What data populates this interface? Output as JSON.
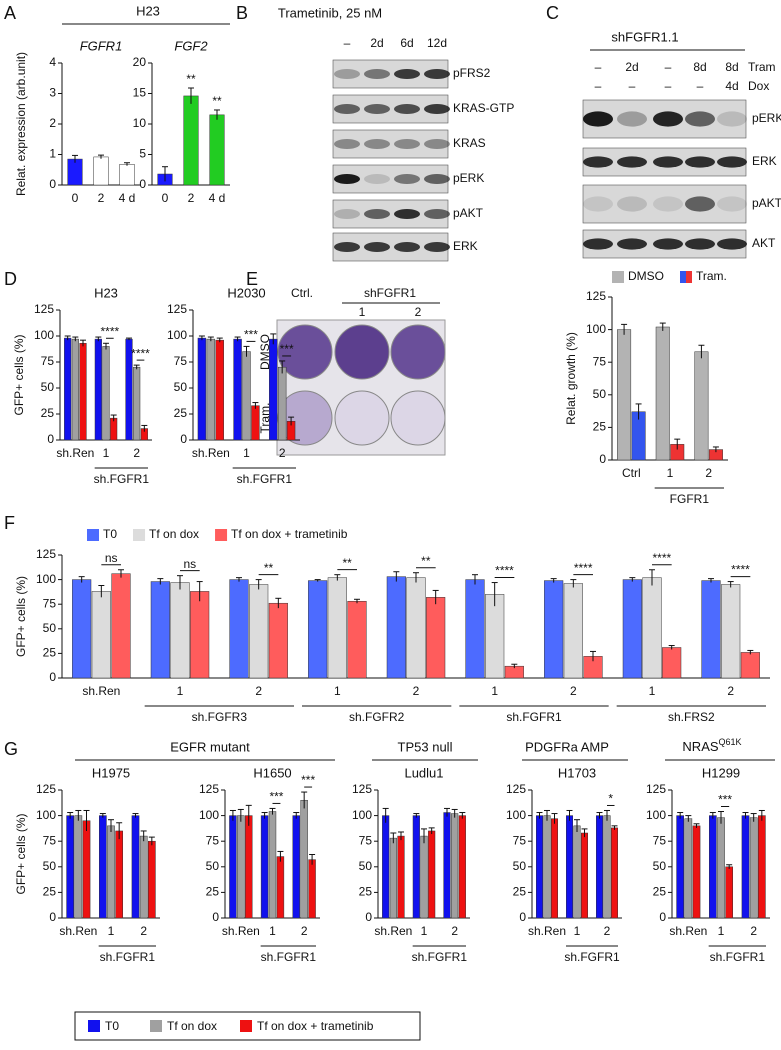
{
  "panel_labels": [
    "A",
    "B",
    "C",
    "D",
    "E",
    "F",
    "G"
  ],
  "panel_a": {
    "cell_line": "H23"
  },
  "blot_b": {
    "title": "Trametinib, 25 nM",
    "lanes": [
      "–",
      "2d",
      "6d",
      "12d"
    ],
    "rows": [
      "pFRS2",
      "KRAS-GTP",
      "KRAS",
      "pERK",
      "pAKT",
      "ERK"
    ]
  },
  "blot_c": {
    "title": "shFGFR1.1",
    "conditions": [
      {
        "name": "Tram",
        "lanes": [
          "–",
          "2d",
          "–",
          "8d",
          "8d"
        ]
      },
      {
        "name": "Dox",
        "lanes": [
          "–",
          "–",
          "–",
          "–",
          "4d"
        ]
      }
    ],
    "rows": [
      "pERK",
      "ERK",
      "pAKT",
      "AKT"
    ]
  },
  "plates_e": {
    "columns": [
      "Ctrl.",
      "1",
      "2"
    ],
    "column_group": "shFGFR1",
    "rows": [
      "DMSO",
      "Tram."
    ]
  },
  "headers_g": [
    {
      "text": "EGFR mutant"
    },
    {
      "text": "TP53 null"
    },
    {
      "text": "PDGFRa AMP"
    },
    {
      "text": "NRAS",
      "superscript": "Q61K"
    }
  ],
  "legend_g": [
    {
      "name": "T0",
      "color": "#1111ee"
    },
    {
      "name": "Tf on dox",
      "color": "#a0a0a0"
    },
    {
      "name": "Tf on dox + trametinib",
      "color": "#ee1111"
    }
  ],
  "chart_data": [
    {
      "type": "bar",
      "title": "FGFR1",
      "ylabel": "Relat. expression (arb.unit)",
      "categories": [
        "0",
        "2",
        "4 d"
      ],
      "values": [
        0.85,
        0.92,
        0.68
      ],
      "errors": [
        0.12,
        0.06,
        0.05
      ],
      "colors": [
        "#1a1aff",
        "#ffffff",
        "#ffffff"
      ],
      "ylim": [
        0,
        4
      ],
      "yticks": [
        0,
        1,
        2,
        3,
        4
      ]
    },
    {
      "type": "bar",
      "title": "FGF2",
      "categories": [
        "0",
        "2",
        "4 d"
      ],
      "values": [
        1.8,
        14.6,
        11.5
      ],
      "errors": [
        1.2,
        1.3,
        0.8
      ],
      "colors": [
        "#1a1aff",
        "#22cc22",
        "#22cc22"
      ],
      "significance": [
        null,
        "**",
        "**"
      ],
      "ylim": [
        0,
        20
      ],
      "yticks": [
        0,
        5,
        10,
        15,
        20
      ]
    },
    {
      "type": "bar",
      "title": "H23",
      "ylabel": "GFP+ cells (%)",
      "categories": [
        "sh.Ren",
        "1",
        "2"
      ],
      "category_groups": [
        null,
        "sh.FGFR1",
        "sh.FGFR1"
      ],
      "series": [
        {
          "color": "#1111ee",
          "values": [
            98,
            97,
            97
          ],
          "errors": [
            2,
            2,
            1
          ]
        },
        {
          "color": "#a0a0a0",
          "values": [
            97,
            90,
            70
          ],
          "errors": [
            2,
            3,
            2
          ]
        },
        {
          "color": "#ee1111",
          "values": [
            93,
            21,
            11
          ],
          "errors": [
            3,
            3,
            3
          ]
        }
      ],
      "significance": [
        null,
        "****",
        "****"
      ],
      "ylim": [
        0,
        125
      ],
      "yticks": [
        0,
        25,
        50,
        75,
        100,
        125
      ]
    },
    {
      "type": "bar",
      "title": "H2030",
      "categories": [
        "sh.Ren",
        "1",
        "2"
      ],
      "category_groups": [
        null,
        "sh.FGFR1",
        "sh.FGFR1"
      ],
      "series": [
        {
          "color": "#1111ee",
          "values": [
            98,
            97,
            97
          ],
          "errors": [
            2,
            2,
            5
          ]
        },
        {
          "color": "#a0a0a0",
          "values": [
            97,
            85,
            70
          ],
          "errors": [
            2,
            5,
            6
          ]
        },
        {
          "color": "#ee1111",
          "values": [
            96,
            33,
            18
          ],
          "errors": [
            2,
            3,
            4
          ]
        }
      ],
      "significance": [
        null,
        "***",
        "***"
      ],
      "ylim": [
        0,
        125
      ],
      "yticks": [
        0,
        25,
        50,
        75,
        100,
        125
      ]
    },
    {
      "type": "bar",
      "ylabel": "Relat. growth (%)",
      "legend": "top",
      "categories": [
        "Ctrl",
        "1",
        "2"
      ],
      "category_groups": [
        null,
        "FGFR1",
        "FGFR1"
      ],
      "series": [
        {
          "name": "DMSO",
          "color": "#b3b3b3",
          "values": [
            100,
            102,
            83
          ],
          "errors": [
            4,
            3,
            5
          ]
        },
        {
          "name": "Tram.",
          "colors": [
            "#3355ee",
            "#ee3333",
            "#ee3333"
          ],
          "values": [
            37,
            12,
            8
          ],
          "errors": [
            6,
            4,
            2
          ]
        }
      ],
      "ylim": [
        0,
        125
      ],
      "yticks": [
        0,
        25,
        50,
        75,
        100,
        125
      ]
    },
    {
      "type": "bar",
      "ylabel": "GFP+ cells (%)",
      "legend": "top",
      "categories": [
        "sh.Ren",
        "1",
        "2",
        "1",
        "2",
        "1",
        "2",
        "1",
        "2"
      ],
      "category_groups": [
        null,
        "sh.FGFR3",
        "sh.FGFR3",
        "sh.FGFR2",
        "sh.FGFR2",
        "sh.FGFR1",
        "sh.FGFR1",
        "sh.FRS2",
        "sh.FRS2"
      ],
      "series": [
        {
          "name": "T0",
          "color": "#4d6bff",
          "values": [
            100,
            98,
            100,
            99,
            103,
            100,
            99,
            100,
            99
          ],
          "errors": [
            3,
            3,
            2,
            1,
            5,
            5,
            2,
            2,
            2
          ]
        },
        {
          "name": "Tf on dox",
          "color": "#dcdcdc",
          "values": [
            88,
            97,
            95,
            102,
            102,
            85,
            96,
            102,
            95
          ],
          "errors": [
            6,
            7,
            5,
            3,
            5,
            12,
            4,
            8,
            3
          ]
        },
        {
          "name": "Tf on dox + trametinib",
          "color": "#ff5c5c",
          "values": [
            106,
            88,
            76,
            78,
            82,
            12,
            22,
            31,
            26
          ],
          "errors": [
            4,
            10,
            5,
            2,
            7,
            2,
            5,
            2,
            2
          ]
        }
      ],
      "significance": [
        "ns",
        "ns",
        "**",
        "**",
        "**",
        "****",
        "****",
        "****",
        "****"
      ],
      "ylim": [
        0,
        125
      ],
      "yticks": [
        0,
        25,
        50,
        75,
        100,
        125
      ]
    },
    {
      "type": "bar",
      "title": "H1975",
      "ylabel": "GFP+ cells (%)",
      "categories": [
        "sh.Ren",
        "1",
        "2"
      ],
      "category_groups": [
        null,
        "sh.FGFR1",
        "sh.FGFR1"
      ],
      "series": [
        {
          "color": "#1111ee",
          "values": [
            100,
            100,
            100
          ],
          "errors": [
            3,
            2,
            2
          ]
        },
        {
          "color": "#a0a0a0",
          "values": [
            100,
            90,
            80
          ],
          "errors": [
            5,
            6,
            5
          ]
        },
        {
          "color": "#ee1111",
          "values": [
            95,
            85,
            75
          ],
          "errors": [
            10,
            8,
            4
          ]
        }
      ],
      "ylim": [
        0,
        125
      ],
      "yticks": [
        0,
        25,
        50,
        75,
        100,
        125
      ]
    },
    {
      "type": "bar",
      "title": "H1650",
      "categories": [
        "sh.Ren",
        "1",
        "2"
      ],
      "category_groups": [
        null,
        "sh.FGFR1",
        "sh.FGFR1"
      ],
      "series": [
        {
          "color": "#1111ee",
          "values": [
            100,
            100,
            100
          ],
          "errors": [
            5,
            3,
            3
          ]
        },
        {
          "color": "#a0a0a0",
          "values": [
            100,
            104,
            115
          ],
          "errors": [
            6,
            3,
            8
          ]
        },
        {
          "color": "#ee1111",
          "values": [
            100,
            60,
            57
          ],
          "errors": [
            10,
            5,
            5
          ]
        }
      ],
      "significance": [
        null,
        "***",
        "***"
      ],
      "ylim": [
        0,
        125
      ],
      "yticks": [
        0,
        25,
        50,
        75,
        100,
        125
      ]
    },
    {
      "type": "bar",
      "title": "Ludlu1",
      "categories": [
        "sh.Ren",
        "1",
        "2"
      ],
      "category_groups": [
        null,
        "sh.FGFR1",
        "sh.FGFR1"
      ],
      "series": [
        {
          "color": "#1111ee",
          "values": [
            100,
            100,
            103
          ],
          "errors": [
            7,
            2,
            4
          ]
        },
        {
          "color": "#a0a0a0",
          "values": [
            78,
            80,
            102
          ],
          "errors": [
            5,
            7,
            4
          ]
        },
        {
          "color": "#ee1111",
          "values": [
            80,
            85,
            100
          ],
          "errors": [
            4,
            3,
            3
          ]
        }
      ],
      "ylim": [
        0,
        125
      ],
      "yticks": [
        0,
        25,
        50,
        75,
        100,
        125
      ]
    },
    {
      "type": "bar",
      "title": "H1703",
      "categories": [
        "sh.Ren",
        "1",
        "2"
      ],
      "category_groups": [
        null,
        "sh.FGFR1",
        "sh.FGFR1"
      ],
      "series": [
        {
          "color": "#1111ee",
          "values": [
            100,
            100,
            100
          ],
          "errors": [
            3,
            5,
            3
          ]
        },
        {
          "color": "#a0a0a0",
          "values": [
            100,
            90,
            100
          ],
          "errors": [
            5,
            6,
            5
          ]
        },
        {
          "color": "#ee1111",
          "values": [
            97,
            83,
            88
          ],
          "errors": [
            5,
            4,
            2
          ]
        }
      ],
      "significance": [
        null,
        null,
        "*"
      ],
      "ylim": [
        0,
        125
      ],
      "yticks": [
        0,
        25,
        50,
        75,
        100,
        125
      ]
    },
    {
      "type": "bar",
      "title": "H1299",
      "categories": [
        "sh.Ren",
        "1",
        "2"
      ],
      "category_groups": [
        null,
        "sh.FGFR1",
        "sh.FGFR1"
      ],
      "series": [
        {
          "color": "#1111ee",
          "values": [
            100,
            100,
            100
          ],
          "errors": [
            3,
            3,
            3
          ]
        },
        {
          "color": "#a0a0a0",
          "values": [
            97,
            98,
            98
          ],
          "errors": [
            3,
            6,
            4
          ]
        },
        {
          "color": "#ee1111",
          "values": [
            90,
            50,
            100
          ],
          "errors": [
            2,
            2,
            5
          ]
        }
      ],
      "significance": [
        null,
        "***",
        null
      ],
      "ylim": [
        0,
        125
      ],
      "yticks": [
        0,
        25,
        50,
        75,
        100,
        125
      ]
    }
  ]
}
